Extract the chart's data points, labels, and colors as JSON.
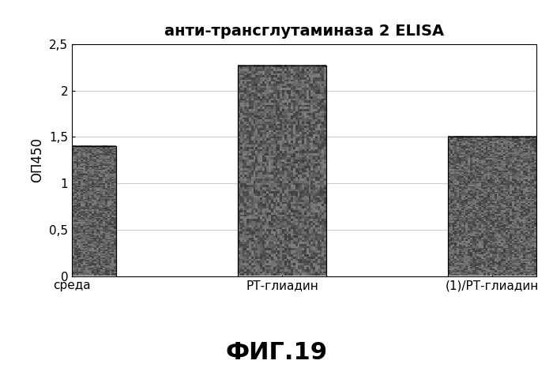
{
  "title": "анти-трансглутаминаза 2 ELISA",
  "categories": [
    "среда",
    "РТ-глиадин",
    "(1)/РТ-глиадин"
  ],
  "values": [
    1.4,
    2.27,
    1.5
  ],
  "ylabel": "ОП450",
  "ylim": [
    0,
    2.5
  ],
  "yticks": [
    0,
    0.5,
    1.0,
    1.5,
    2.0,
    2.5
  ],
  "ytick_labels": [
    "0",
    "0,5",
    "1",
    "1,5",
    "2",
    "2,5"
  ],
  "bar_color": "#606060",
  "bar_width": 0.42,
  "caption": "ФИГ.19",
  "title_fontsize": 14,
  "ylabel_fontsize": 12,
  "xtick_fontsize": 11,
  "ytick_fontsize": 11,
  "caption_fontsize": 22,
  "background_color": "#ffffff",
  "grid_color": "#cccccc",
  "noise_seed": 42
}
